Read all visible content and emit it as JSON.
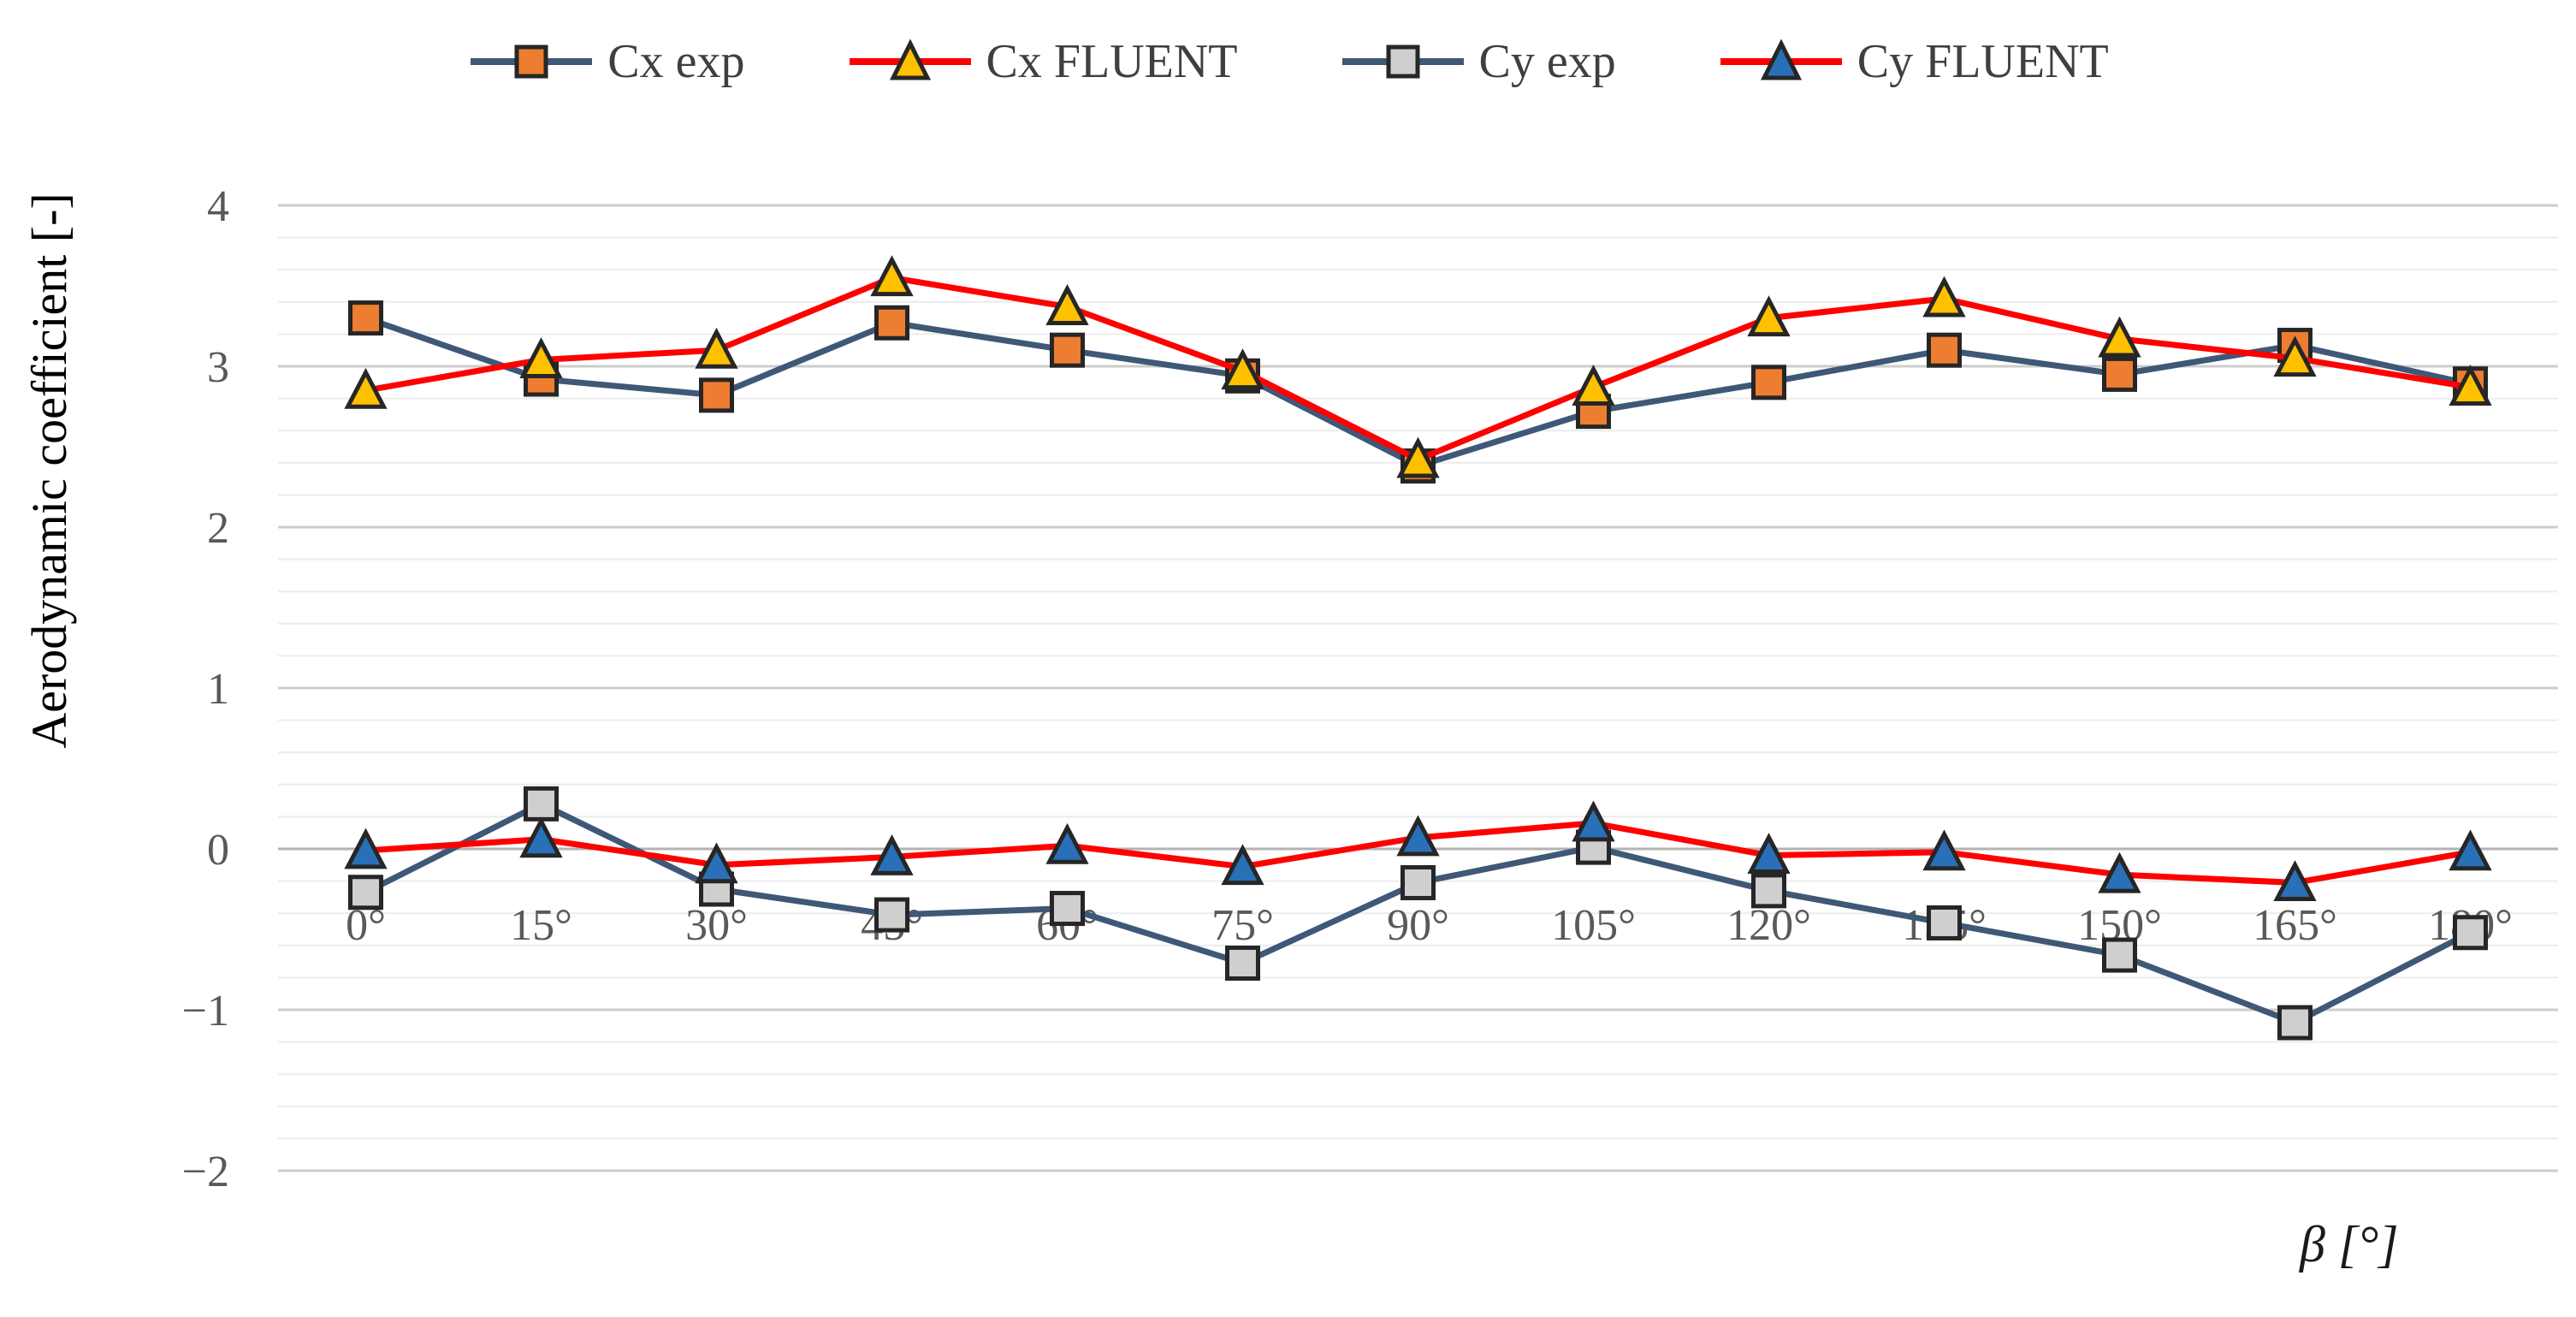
{
  "axes": {
    "y_title": "Aerodynamic coefficient [-]",
    "x_title": "β [°]",
    "y_ticks": [
      "4",
      "3",
      "2",
      "1",
      "0",
      "−1",
      "−2"
    ],
    "y_max": 4,
    "y_min": -2,
    "y_major_step": 1,
    "y_minor_step": 0.2
  },
  "style": {
    "marker_stroke": "#262626",
    "gridline_minor": "#ececec",
    "gridline_major": "#cdcdcd",
    "gridline_zero": "#b3b3b3",
    "tick_label_color": "#595959"
  },
  "chart_data": {
    "type": "line",
    "title": "",
    "xlabel": "β [°]",
    "ylabel": "Aerodynamic coefficient [-]",
    "ylim": [
      -2,
      4
    ],
    "grid": true,
    "legend_position": "top",
    "categories": [
      "0°",
      "15°",
      "30°",
      "45°",
      "60°",
      "75°",
      "90°",
      "105°",
      "120°",
      "135°",
      "150°",
      "165°",
      "180°"
    ],
    "series": [
      {
        "name": "Cx exp",
        "marker": "square",
        "marker_color": "#ED7D31",
        "line_color": "#3F5878",
        "values": [
          3.3,
          2.92,
          2.82,
          3.27,
          3.1,
          2.94,
          2.38,
          2.72,
          2.9,
          3.1,
          2.95,
          3.13,
          2.89
        ]
      },
      {
        "name": "Cx FLUENT",
        "marker": "triangle",
        "marker_color": "#FFC000",
        "line_color": "#FF0000",
        "values": [
          2.85,
          3.04,
          3.1,
          3.55,
          3.37,
          2.97,
          2.42,
          2.87,
          3.3,
          3.42,
          3.17,
          3.05,
          2.87
        ]
      },
      {
        "name": "Cy exp",
        "marker": "square",
        "marker_color": "#CFCFCF",
        "line_color": "#3F5878",
        "values": [
          -0.27,
          0.28,
          -0.25,
          -0.41,
          -0.37,
          -0.71,
          -0.21,
          0.01,
          -0.26,
          -0.46,
          -0.66,
          -1.08,
          -0.52
        ]
      },
      {
        "name": "Cy FLUENT",
        "marker": "triangle",
        "marker_color": "#2A70B8",
        "line_color": "#FF0000",
        "values": [
          -0.01,
          0.06,
          -0.1,
          -0.05,
          0.02,
          -0.11,
          0.07,
          0.16,
          -0.04,
          -0.02,
          -0.16,
          -0.21,
          -0.02
        ]
      }
    ]
  }
}
